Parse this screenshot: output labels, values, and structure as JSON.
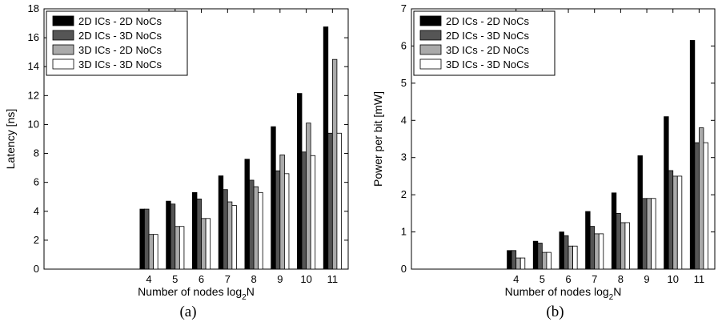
{
  "chart_data": [
    {
      "type": "bar",
      "caption": "(a)",
      "xlabel": "Number of nodes log",
      "xlabel_sub": "2",
      "xlabel_tail": "N",
      "ylabel": "Latency [ns]",
      "ylim": [
        0,
        18
      ],
      "xlim": [
        0,
        11.6
      ],
      "yticks": [
        "0",
        "2",
        "4",
        "6",
        "8",
        "10",
        "12",
        "14",
        "16",
        "18"
      ],
      "categories": [
        "4",
        "5",
        "6",
        "7",
        "8",
        "9",
        "10",
        "11"
      ],
      "legend_position": "top-left",
      "series": [
        {
          "name": "2D ICs - 2D NoCs",
          "color": "#000000",
          "values": [
            4.15,
            4.7,
            5.3,
            6.45,
            7.6,
            9.85,
            12.15,
            16.75
          ]
        },
        {
          "name": "2D ICs - 3D NoCs",
          "color": "#555555",
          "values": [
            4.15,
            4.5,
            4.85,
            5.5,
            6.15,
            6.8,
            8.1,
            9.4
          ]
        },
        {
          "name": "3D ICs - 2D NoCs",
          "color": "#aaaaaa",
          "values": [
            2.4,
            2.95,
            3.5,
            4.65,
            5.7,
            7.9,
            10.1,
            14.5
          ]
        },
        {
          "name": "3D ICs - 3D NoCs",
          "color": "#ffffff",
          "values": [
            2.4,
            2.95,
            3.5,
            4.4,
            5.3,
            6.6,
            7.85,
            9.4
          ]
        }
      ]
    },
    {
      "type": "bar",
      "caption": "(b)",
      "xlabel": "Number of nodes log",
      "xlabel_sub": "2",
      "xlabel_tail": "N",
      "ylabel": "Power per bit [mW]",
      "ylim": [
        0,
        7
      ],
      "xlim": [
        0,
        11.6
      ],
      "yticks": [
        "0",
        "1",
        "2",
        "3",
        "4",
        "5",
        "6",
        "7"
      ],
      "categories": [
        "4",
        "5",
        "6",
        "7",
        "8",
        "9",
        "10",
        "11"
      ],
      "legend_position": "top-left",
      "series": [
        {
          "name": "2D ICs - 2D NoCs",
          "color": "#000000",
          "values": [
            0.5,
            0.75,
            1.0,
            1.55,
            2.05,
            3.05,
            4.1,
            6.15
          ]
        },
        {
          "name": "2D ICs - 3D NoCs",
          "color": "#555555",
          "values": [
            0.5,
            0.7,
            0.9,
            1.15,
            1.5,
            1.9,
            2.65,
            3.4
          ]
        },
        {
          "name": "3D ICs - 2D NoCs",
          "color": "#aaaaaa",
          "values": [
            0.3,
            0.45,
            0.62,
            0.95,
            1.25,
            1.9,
            2.5,
            3.8
          ]
        },
        {
          "name": "3D ICs - 3D NoCs",
          "color": "#ffffff",
          "values": [
            0.3,
            0.45,
            0.62,
            0.95,
            1.25,
            1.9,
            2.5,
            3.4
          ]
        }
      ]
    }
  ]
}
